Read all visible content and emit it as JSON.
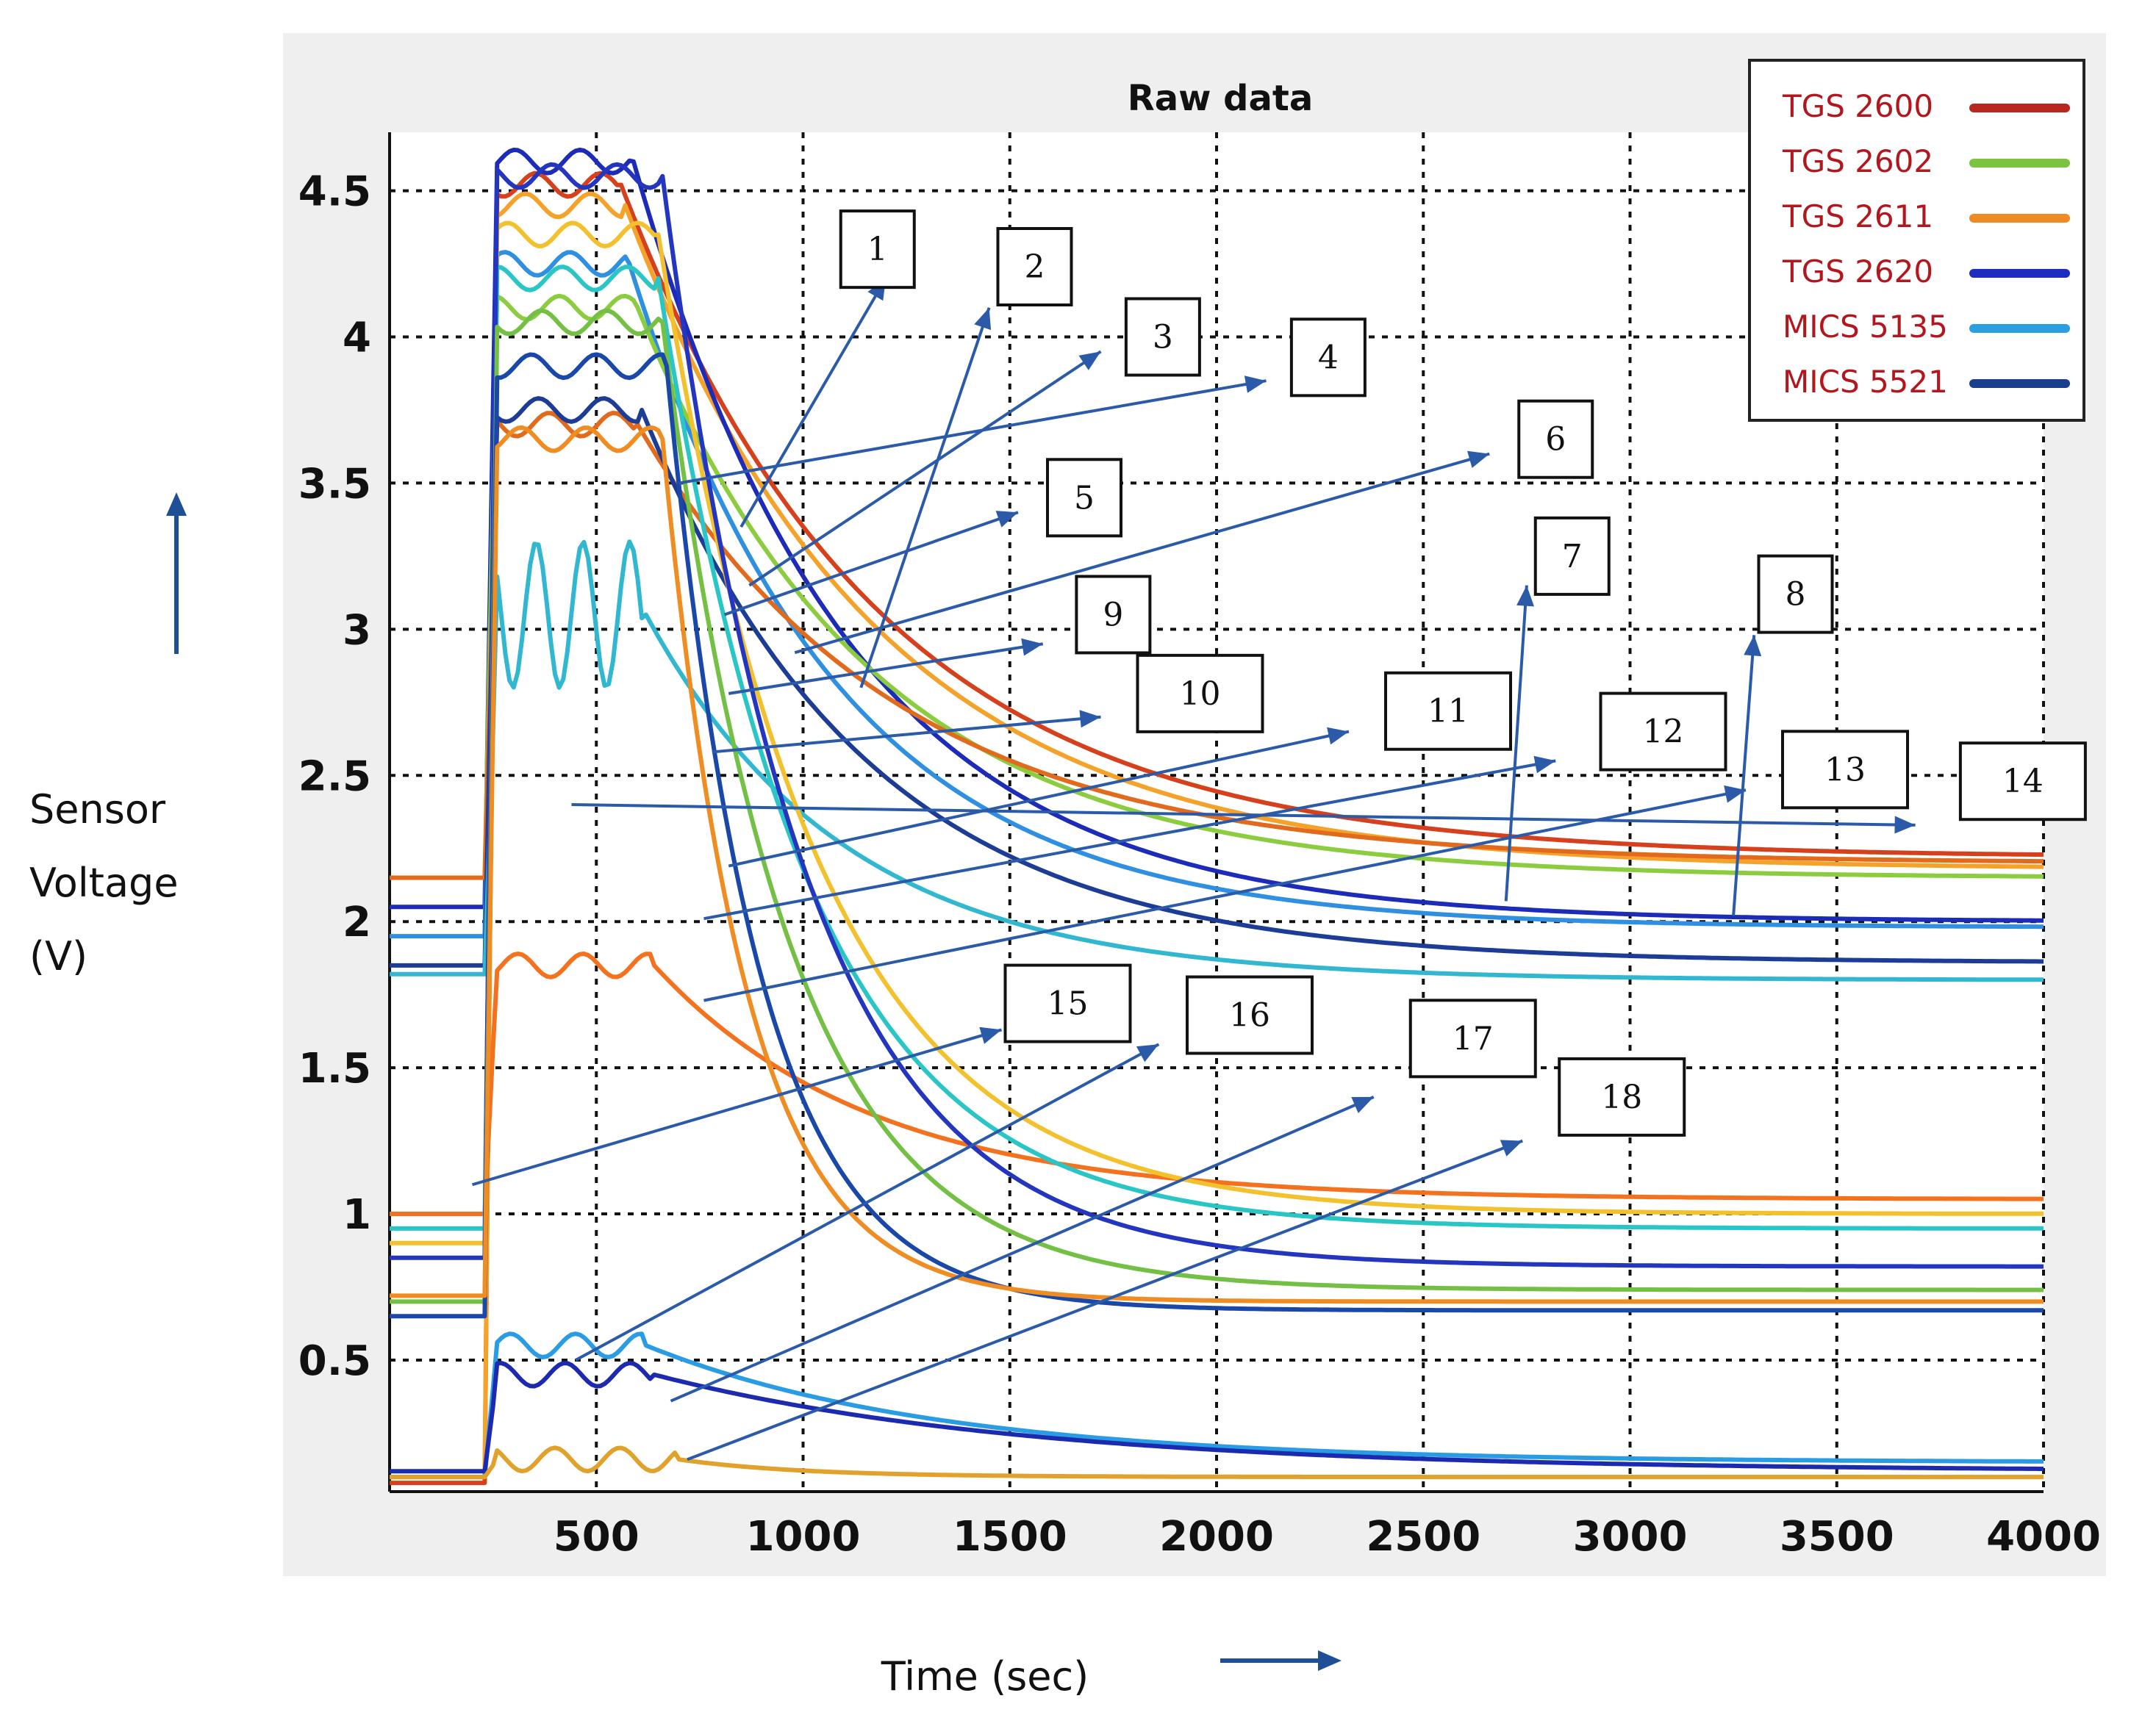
{
  "chart_data": {
    "type": "line",
    "title": "Raw data",
    "xlabel": "Time (sec)",
    "ylabel": [
      "Sensor",
      "Voltage",
      "(V)"
    ],
    "xlim": [
      0,
      4000
    ],
    "ylim": [
      0.05,
      4.7
    ],
    "grid": true,
    "xticks": [
      500,
      1000,
      1500,
      2000,
      2500,
      3000,
      3500,
      4000
    ],
    "yticks": [
      0.5,
      1,
      1.5,
      2,
      2.5,
      3,
      3.5,
      4,
      4.5
    ],
    "xtick_labels": [
      "500",
      "1000",
      "1500",
      "2000",
      "2500",
      "3000",
      "3500",
      "4000"
    ],
    "ytick_labels": [
      "0.5",
      "1",
      "1.5",
      "2",
      "2.5",
      "3",
      "3.5",
      "4",
      "4.5"
    ],
    "legend": {
      "placement": "top-right",
      "entries": [
        {
          "label": "TGS 2600",
          "color": "#b8281e"
        },
        {
          "label": "TGS 2602",
          "color": "#7cc440"
        },
        {
          "label": "TGS 2611",
          "color": "#f08a24"
        },
        {
          "label": "TGS 2620",
          "color": "#1f2cc0"
        },
        {
          "label": "MICS 5135",
          "color": "#2c9fe0"
        },
        {
          "label": "MICS 5521",
          "color": "#1b3f8f"
        }
      ]
    },
    "series": [
      {
        "name": "s1",
        "color": "#d6401c",
        "t0": 0,
        "v0": 0.08,
        "peak": 4.52,
        "t_drop": 560,
        "final": 2.22,
        "tau": 620
      },
      {
        "name": "s2",
        "color": "#f5a22a",
        "t0": 0,
        "v0": 0.1,
        "peak": 4.45,
        "t_drop": 570,
        "final": 2.18,
        "tau": 600
      },
      {
        "name": "s3",
        "color": "#1c2bb8",
        "t0": 0,
        "v0": 2.05,
        "peak": 4.6,
        "t_drop": 590,
        "final": 2.0,
        "tau": 520
      },
      {
        "name": "s4",
        "color": "#2f8fe0",
        "t0": 0,
        "v0": 1.95,
        "peak": 4.25,
        "t_drop": 580,
        "final": 1.98,
        "tau": 500
      },
      {
        "name": "s5",
        "color": "#8ccd3f",
        "t0": 0,
        "v0": 2.15,
        "peak": 4.1,
        "t_drop": 600,
        "final": 2.15,
        "tau": 560
      },
      {
        "name": "s6",
        "color": "#e26a1c",
        "t0": 0,
        "v0": 2.15,
        "peak": 3.7,
        "t_drop": 600,
        "final": 2.2,
        "tau": 620
      },
      {
        "name": "s7",
        "color": "#1d3c96",
        "t0": 0,
        "v0": 1.85,
        "peak": 3.75,
        "t_drop": 610,
        "final": 1.86,
        "tau": 540
      },
      {
        "name": "s8",
        "color": "#31b8d0",
        "t0": 0,
        "v0": 1.82,
        "peak": 3.05,
        "t_drop": 620,
        "final": 1.8,
        "tau": 480
      },
      {
        "name": "s9",
        "color": "#f4711d",
        "t0": 0,
        "v0": 1.0,
        "peak": 1.85,
        "t_drop": 640,
        "final": 1.05,
        "tau": 520
      },
      {
        "name": "s10",
        "color": "#f3c12e",
        "t0": 0,
        "v0": 0.9,
        "peak": 4.35,
        "t_drop": 650,
        "final": 1.0,
        "tau": 380
      },
      {
        "name": "s11",
        "color": "#2ac6c6",
        "t0": 0,
        "v0": 0.95,
        "peak": 4.2,
        "t_drop": 650,
        "final": 0.95,
        "tau": 360
      },
      {
        "name": "s12",
        "color": "#2435c0",
        "t0": 0,
        "v0": 0.85,
        "peak": 4.55,
        "t_drop": 660,
        "final": 0.82,
        "tau": 340
      },
      {
        "name": "s13",
        "color": "#74c045",
        "t0": 0,
        "v0": 0.7,
        "peak": 4.05,
        "t_drop": 660,
        "final": 0.74,
        "tau": 300
      },
      {
        "name": "s14",
        "color": "#1a48a8",
        "t0": 0,
        "v0": 0.65,
        "peak": 3.9,
        "t_drop": 670,
        "final": 0.67,
        "tau": 220
      },
      {
        "name": "s15",
        "color": "#ef8c22",
        "t0": 0,
        "v0": 0.72,
        "peak": 3.65,
        "t_drop": 660,
        "final": 0.7,
        "tau": 200
      },
      {
        "name": "s16",
        "color": "#2a9ce3",
        "t0": 0,
        "v0": 0.1,
        "peak": 0.55,
        "t_drop": 620,
        "final": 0.15,
        "tau": 700
      },
      {
        "name": "s17",
        "color": "#1c2ab0",
        "t0": 0,
        "v0": 0.12,
        "peak": 0.45,
        "t_drop": 640,
        "final": 0.12,
        "tau": 900
      },
      {
        "name": "s18",
        "color": "#e0a22a",
        "t0": 0,
        "v0": 0.1,
        "peak": 0.16,
        "t_drop": 700,
        "final": 0.1,
        "tau": 300
      }
    ],
    "callouts": [
      {
        "label": "1",
        "box_x": 1180,
        "box_y": 4.3,
        "tip_x": 1200,
        "tip_y": 4.2,
        "from_x": 850,
        "from_y": 3.35
      },
      {
        "label": "2",
        "box_x": 1560,
        "box_y": 4.24,
        "tip_x": 1450,
        "tip_y": 4.1,
        "from_x": 1140,
        "from_y": 2.8
      },
      {
        "label": "3",
        "box_x": 1870,
        "box_y": 4.0,
        "tip_x": 1720,
        "tip_y": 3.95,
        "from_x": 870,
        "from_y": 3.15
      },
      {
        "label": "4",
        "box_x": 2270,
        "box_y": 3.93,
        "tip_x": 2120,
        "tip_y": 3.85,
        "from_x": 700,
        "from_y": 3.5
      },
      {
        "label": "5",
        "box_x": 1680,
        "box_y": 3.45,
        "tip_x": 1520,
        "tip_y": 3.4,
        "from_x": 810,
        "from_y": 3.05
      },
      {
        "label": "6",
        "box_x": 2820,
        "box_y": 3.65,
        "tip_x": 2660,
        "tip_y": 3.6,
        "from_x": 980,
        "from_y": 2.92
      },
      {
        "label": "7",
        "box_x": 2860,
        "box_y": 3.25,
        "tip_x": 2750,
        "tip_y": 3.15,
        "from_x": 2700,
        "from_y": 2.07
      },
      {
        "label": "8",
        "box_x": 3400,
        "box_y": 3.12,
        "tip_x": 3300,
        "tip_y": 2.98,
        "from_x": 3250,
        "from_y": 2.02
      },
      {
        "label": "9",
        "box_x": 1750,
        "box_y": 3.05,
        "tip_x": 1580,
        "tip_y": 2.95,
        "from_x": 820,
        "from_y": 2.78
      },
      {
        "label": "10",
        "box_x": 1960,
        "box_y": 2.78,
        "tip_x": 1720,
        "tip_y": 2.7,
        "from_x": 780,
        "from_y": 2.58
      },
      {
        "label": "11",
        "box_x": 2560,
        "box_y": 2.72,
        "tip_x": 2320,
        "tip_y": 2.65,
        "from_x": 820,
        "from_y": 2.19
      },
      {
        "label": "12",
        "box_x": 3080,
        "box_y": 2.65,
        "tip_x": 2820,
        "tip_y": 2.55,
        "from_x": 760,
        "from_y": 2.01
      },
      {
        "label": "13",
        "box_x": 3520,
        "box_y": 2.52,
        "tip_x": 3280,
        "tip_y": 2.45,
        "from_x": 760,
        "from_y": 1.73
      },
      {
        "label": "14",
        "box_x": 3950,
        "box_y": 2.48,
        "tip_x": 3690,
        "tip_y": 2.33,
        "from_x": 440,
        "from_y": 2.4
      },
      {
        "label": "15",
        "box_x": 1640,
        "box_y": 1.72,
        "tip_x": 1480,
        "tip_y": 1.63,
        "from_x": 200,
        "from_y": 1.1
      },
      {
        "label": "16",
        "box_x": 2080,
        "box_y": 1.68,
        "tip_x": 1860,
        "tip_y": 1.58,
        "from_x": 450,
        "from_y": 0.5
      },
      {
        "label": "17",
        "box_x": 2620,
        "box_y": 1.6,
        "tip_x": 2380,
        "tip_y": 1.4,
        "from_x": 680,
        "from_y": 0.36
      },
      {
        "label": "18",
        "box_x": 2980,
        "box_y": 1.4,
        "tip_x": 2740,
        "tip_y": 1.25,
        "from_x": 720,
        "from_y": 0.16
      }
    ]
  }
}
